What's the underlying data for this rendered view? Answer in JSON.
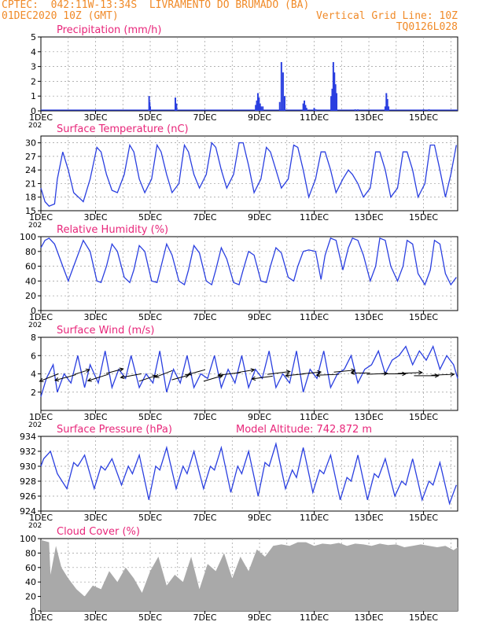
{
  "header": {
    "line1": "CPTEC:  042:11W-13:34S  LIVRAMENTO DO BRUMADO (BA)",
    "date": "01DEC2020 10Z (GMT)",
    "grid_note": "Vertical Grid Line: 10Z",
    "code": "TQ0126L028"
  },
  "colors": {
    "header": "#f08a28",
    "title": "#e8267a",
    "line": "#2a3fe0",
    "bar": "#2a3fe0",
    "cloud": "#a9a9a9",
    "grid": "#9a9a9a"
  },
  "x_axis": {
    "labels": [
      "1DEC",
      "3DEC",
      "5DEC",
      "7DEC",
      "9DEC",
      "11DEC",
      "13DEC",
      "15DEC"
    ],
    "label_days": [
      0,
      2,
      4,
      6,
      8,
      10,
      12,
      14
    ],
    "cut_label": "202",
    "range_days": [
      0,
      15.25
    ]
  },
  "chart_data": [
    {
      "type": "bar",
      "title": "Precipitation (mm/h)",
      "ylim": [
        0,
        5
      ],
      "yticks": [
        "0",
        "1",
        "2",
        "3",
        "4",
        "5"
      ],
      "x": [
        3.96,
        3.98,
        4.0,
        4.92,
        4.96,
        7.86,
        7.9,
        7.94,
        7.98,
        8.02,
        8.06,
        8.12,
        8.74,
        8.8,
        8.86,
        8.92,
        9.6,
        9.64,
        9.68,
        9.72,
        10.0,
        10.06,
        10.62,
        10.66,
        10.7,
        10.74,
        10.78,
        10.82,
        11.5,
        11.6,
        12.6,
        12.64,
        12.68,
        12.72,
        14.0,
        14.2
      ],
      "values": [
        1.0,
        0.6,
        0.3,
        0.9,
        0.5,
        0.4,
        0.7,
        1.2,
        0.9,
        0.5,
        0.3,
        0.3,
        0.6,
        3.3,
        2.6,
        1.0,
        0.5,
        0.7,
        0.4,
        0.2,
        0.2,
        0.1,
        1.0,
        1.5,
        3.3,
        2.6,
        1.8,
        1.2,
        0.1,
        0.1,
        0.3,
        1.2,
        0.8,
        0.3,
        0.1,
        0.1
      ]
    },
    {
      "type": "line",
      "title": "Surface Temperature (nC)",
      "ylim": [
        15,
        31.5
      ],
      "yticks": [
        "15",
        "18",
        "21",
        "24",
        "27",
        "30"
      ],
      "x": [
        0,
        0.15,
        0.3,
        0.5,
        0.6,
        0.8,
        1.0,
        1.2,
        1.55,
        1.8,
        2.05,
        2.2,
        2.4,
        2.6,
        2.8,
        3.05,
        3.25,
        3.4,
        3.6,
        3.8,
        4.05,
        4.25,
        4.4,
        4.6,
        4.8,
        5.05,
        5.25,
        5.4,
        5.6,
        5.8,
        6.05,
        6.25,
        6.4,
        6.6,
        6.8,
        7.05,
        7.25,
        7.4,
        7.6,
        7.8,
        8.05,
        8.25,
        8.4,
        8.6,
        8.8,
        9.05,
        9.25,
        9.4,
        9.6,
        9.8,
        10.05,
        10.25,
        10.4,
        10.6,
        10.8,
        11.05,
        11.25,
        11.4,
        11.6,
        11.8,
        12.05,
        12.25,
        12.4,
        12.6,
        12.8,
        13.05,
        13.25,
        13.4,
        13.6,
        13.8,
        14.05,
        14.25,
        14.4,
        14.6,
        14.8,
        15.0,
        15.2
      ],
      "values": [
        20,
        17,
        16,
        16.5,
        22,
        28,
        24,
        19,
        17,
        22,
        29,
        28,
        23,
        19.5,
        19,
        23,
        29.5,
        28,
        22,
        19,
        22,
        29.5,
        28,
        23,
        19,
        21,
        29.5,
        28,
        23,
        20,
        23,
        30,
        29,
        24,
        20,
        23,
        30,
        30,
        25,
        19,
        22,
        29,
        28,
        24,
        20,
        22,
        29.5,
        29,
        24,
        18,
        22,
        28,
        28,
        24,
        19,
        22,
        24,
        23,
        21,
        18,
        20,
        28,
        28,
        24,
        18,
        20,
        28,
        28,
        24,
        18,
        21,
        29.5,
        29.5,
        24,
        18,
        23,
        29.5
      ]
    },
    {
      "type": "line",
      "title": "Relative Humidity (%)",
      "ylim": [
        0,
        100
      ],
      "yticks": [
        "0",
        "20",
        "40",
        "60",
        "80",
        "100"
      ],
      "x": [
        0,
        0.15,
        0.3,
        0.5,
        0.8,
        1.0,
        1.2,
        1.55,
        1.8,
        2.05,
        2.2,
        2.4,
        2.6,
        2.8,
        3.05,
        3.25,
        3.4,
        3.6,
        3.8,
        4.05,
        4.25,
        4.4,
        4.6,
        4.8,
        5.05,
        5.25,
        5.4,
        5.6,
        5.8,
        6.05,
        6.25,
        6.4,
        6.6,
        6.8,
        7.05,
        7.25,
        7.4,
        7.6,
        7.8,
        8.05,
        8.25,
        8.4,
        8.6,
        8.8,
        9.05,
        9.25,
        9.4,
        9.6,
        9.8,
        10.05,
        10.25,
        10.4,
        10.6,
        10.8,
        11.05,
        11.25,
        11.4,
        11.6,
        11.8,
        12.05,
        12.25,
        12.4,
        12.6,
        12.8,
        13.05,
        13.25,
        13.4,
        13.6,
        13.8,
        14.05,
        14.25,
        14.4,
        14.6,
        14.8,
        15.0,
        15.2
      ],
      "values": [
        85,
        95,
        98,
        90,
        60,
        40,
        60,
        95,
        80,
        40,
        38,
        60,
        90,
        80,
        45,
        38,
        55,
        88,
        80,
        40,
        38,
        60,
        90,
        75,
        40,
        35,
        55,
        88,
        78,
        40,
        35,
        55,
        85,
        70,
        38,
        35,
        55,
        80,
        75,
        40,
        38,
        60,
        85,
        78,
        45,
        40,
        60,
        80,
        82,
        80,
        42,
        75,
        98,
        95,
        55,
        85,
        98,
        95,
        75,
        40,
        60,
        98,
        95,
        60,
        40,
        60,
        95,
        90,
        50,
        35,
        55,
        95,
        90,
        50,
        35,
        45
      ]
    },
    {
      "type": "line",
      "title": "Surface Wind (m/s)",
      "ylim": [
        0,
        8
      ],
      "yticks": [
        "2",
        "4",
        "6",
        "8"
      ],
      "x": [
        0,
        0.2,
        0.45,
        0.6,
        0.85,
        1.1,
        1.35,
        1.6,
        1.8,
        2.1,
        2.35,
        2.6,
        2.85,
        3.1,
        3.3,
        3.6,
        3.85,
        4.1,
        4.35,
        4.6,
        4.85,
        5.1,
        5.35,
        5.6,
        5.85,
        6.1,
        6.35,
        6.6,
        6.85,
        7.1,
        7.35,
        7.6,
        7.85,
        8.1,
        8.35,
        8.6,
        8.85,
        9.1,
        9.35,
        9.6,
        9.85,
        10.1,
        10.35,
        10.6,
        10.85,
        11.1,
        11.35,
        11.6,
        11.85,
        12.1,
        12.35,
        12.6,
        12.85,
        13.1,
        13.35,
        13.6,
        13.85,
        14.1,
        14.35,
        14.6,
        14.85,
        15.1,
        15.25
      ],
      "values": [
        1.5,
        3.5,
        5.0,
        2.0,
        4.0,
        3.0,
        6.0,
        2.5,
        5.0,
        3.0,
        6.5,
        2.5,
        4.5,
        3.5,
        6.0,
        2.5,
        4.0,
        3.0,
        6.5,
        2.0,
        4.5,
        3.0,
        6.0,
        2.5,
        4.0,
        3.5,
        6.0,
        2.5,
        4.5,
        3.0,
        6.0,
        2.5,
        4.5,
        3.5,
        6.5,
        2.5,
        4.0,
        3.0,
        6.5,
        2.0,
        4.5,
        3.5,
        6.5,
        2.5,
        4.0,
        4.5,
        6.0,
        3.0,
        4.5,
        5.0,
        6.5,
        4.0,
        5.5,
        6.0,
        7.0,
        5.0,
        6.5,
        5.5,
        7.0,
        4.5,
        6.0,
        5.0,
        3.5
      ],
      "arrows_x": [
        0.3,
        0.9,
        1.5,
        2.1,
        2.7,
        3.3,
        3.9,
        4.5,
        5.1,
        5.7,
        6.3,
        6.9,
        7.5,
        8.1,
        8.7,
        9.3,
        9.9,
        10.5,
        11.1,
        11.7,
        12.3,
        12.9,
        13.5,
        14.1,
        14.7
      ],
      "arrows_y": [
        3.6,
        3.6,
        4.2,
        3.6,
        4.3,
        3.8,
        3.5,
        4.0,
        3.6,
        4.2,
        3.5,
        4.0,
        4.3,
        3.6,
        4.1,
        3.9,
        4.1,
        3.9,
        4.3,
        4.1,
        4.0,
        4.0,
        4.1,
        3.8,
        3.9
      ],
      "arrows_u": [
        -1.0,
        -1.1,
        0.8,
        -1.1,
        0.9,
        -1.1,
        0.9,
        -0.9,
        0.9,
        -0.9,
        1.0,
        -1.2,
        0.9,
        -1.1,
        1.2,
        -1.0,
        1.0,
        -1.2,
        1.1,
        -1.0,
        1.1,
        1.3,
        1.3,
        1.3,
        1.2
      ],
      "arrows_v": [
        -0.8,
        -0.6,
        0.5,
        -0.7,
        0.5,
        -0.4,
        0.6,
        -0.7,
        0.5,
        -0.5,
        0.6,
        -0.3,
        0.3,
        -0.3,
        0.3,
        -0.2,
        0.2,
        -0.1,
        0.2,
        0.0,
        0.1,
        0.0,
        0.1,
        0.0,
        0.1
      ]
    },
    {
      "type": "line",
      "title": "Surface Pressure (hPa)",
      "annotation": "Model Altitude: 742.872 m",
      "ylim": [
        924,
        934
      ],
      "yticks": [
        "924",
        "926",
        "928",
        "930",
        "932",
        "934"
      ],
      "x": [
        0,
        0.1,
        0.35,
        0.6,
        0.95,
        1.2,
        1.35,
        1.6,
        1.95,
        2.2,
        2.35,
        2.6,
        2.95,
        3.2,
        3.35,
        3.6,
        3.95,
        4.2,
        4.35,
        4.6,
        4.95,
        5.2,
        5.35,
        5.6,
        5.95,
        6.2,
        6.35,
        6.6,
        6.95,
        7.2,
        7.35,
        7.6,
        7.95,
        8.2,
        8.35,
        8.6,
        8.95,
        9.2,
        9.35,
        9.6,
        9.95,
        10.2,
        10.35,
        10.6,
        10.95,
        11.2,
        11.35,
        11.6,
        11.95,
        12.2,
        12.35,
        12.6,
        12.95,
        13.2,
        13.35,
        13.6,
        13.95,
        14.2,
        14.35,
        14.6,
        14.95,
        15.2
      ],
      "values": [
        930.0,
        931.0,
        932.0,
        929.0,
        927.0,
        930.5,
        930.0,
        931.5,
        927.0,
        930.0,
        929.5,
        931.0,
        927.5,
        930.0,
        929.0,
        931.5,
        925.5,
        930.0,
        929.5,
        932.5,
        927.0,
        930.0,
        929.0,
        932.0,
        927.0,
        930.0,
        929.5,
        932.5,
        926.5,
        930.0,
        929.0,
        932.0,
        926.0,
        930.5,
        930.0,
        933.0,
        927.0,
        929.5,
        928.5,
        932.5,
        926.5,
        929.5,
        929.0,
        931.5,
        925.5,
        928.5,
        928.0,
        931.5,
        925.5,
        929.0,
        928.5,
        931.0,
        926.0,
        928.0,
        927.5,
        931.0,
        925.5,
        928.0,
        927.5,
        930.5,
        925.0,
        927.5
      ]
    },
    {
      "type": "area",
      "title": "Cloud Cover (%)",
      "ylim": [
        0,
        100
      ],
      "yticks": [
        "0",
        "20",
        "40",
        "60",
        "80",
        "100"
      ],
      "x": [
        0,
        0.3,
        0.35,
        0.55,
        0.75,
        1.0,
        1.3,
        1.6,
        1.9,
        2.2,
        2.5,
        2.8,
        3.1,
        3.4,
        3.7,
        4.0,
        4.3,
        4.6,
        4.9,
        5.2,
        5.5,
        5.8,
        6.1,
        6.4,
        6.7,
        7.0,
        7.3,
        7.6,
        7.9,
        8.2,
        8.5,
        8.8,
        9.1,
        9.4,
        9.7,
        10.0,
        10.3,
        10.6,
        10.9,
        11.2,
        11.5,
        11.8,
        12.1,
        12.4,
        12.7,
        13.0,
        13.3,
        13.6,
        13.9,
        14.2,
        14.5,
        14.8,
        15.1,
        15.25
      ],
      "values": [
        98,
        95,
        50,
        90,
        60,
        45,
        30,
        20,
        35,
        30,
        55,
        40,
        60,
        45,
        25,
        55,
        75,
        35,
        50,
        40,
        75,
        30,
        65,
        55,
        80,
        45,
        75,
        55,
        85,
        75,
        90,
        92,
        90,
        95,
        95,
        90,
        93,
        92,
        94,
        90,
        93,
        92,
        90,
        93,
        91,
        92,
        88,
        90,
        92,
        90,
        88,
        90,
        84,
        88
      ]
    }
  ]
}
